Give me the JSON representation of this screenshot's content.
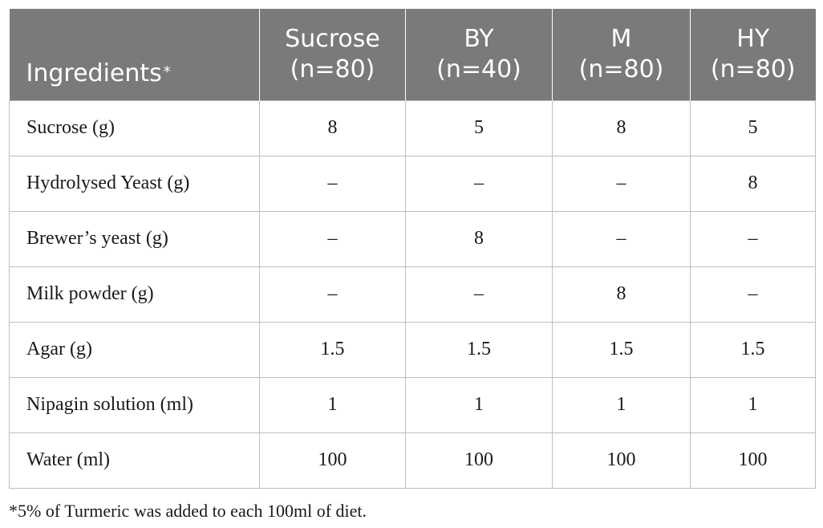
{
  "table": {
    "headers": [
      {
        "lines": [
          "Ingredients"
        ],
        "marker": "*"
      },
      {
        "lines": [
          "Sucrose",
          "(n=80)"
        ]
      },
      {
        "lines": [
          "BY",
          "(n=40)"
        ]
      },
      {
        "lines": [
          "M",
          "(n=80)"
        ]
      },
      {
        "lines": [
          "HY",
          "(n=80)"
        ]
      }
    ],
    "rows": [
      [
        "Sucrose (g)",
        "8",
        "5",
        "8",
        "5"
      ],
      [
        "Hydrolysed Yeast (g)",
        "–",
        "–",
        "–",
        "8"
      ],
      [
        "Brewer’s yeast (g)",
        "–",
        "8",
        "–",
        "–"
      ],
      [
        "Milk powder (g)",
        "–",
        "–",
        "8",
        "–"
      ],
      [
        "Agar (g)",
        "1.5",
        "1.5",
        "1.5",
        "1.5"
      ],
      [
        "Nipagin solution (ml)",
        "1",
        "1",
        "1",
        "1"
      ],
      [
        "Water (ml)",
        "100",
        "100",
        "100",
        "100"
      ]
    ],
    "header_bg": "#7a7a7a",
    "grid_color": "#bdbdbd"
  },
  "footnote": "*5% of Turmeric was added to each 100ml of diet."
}
